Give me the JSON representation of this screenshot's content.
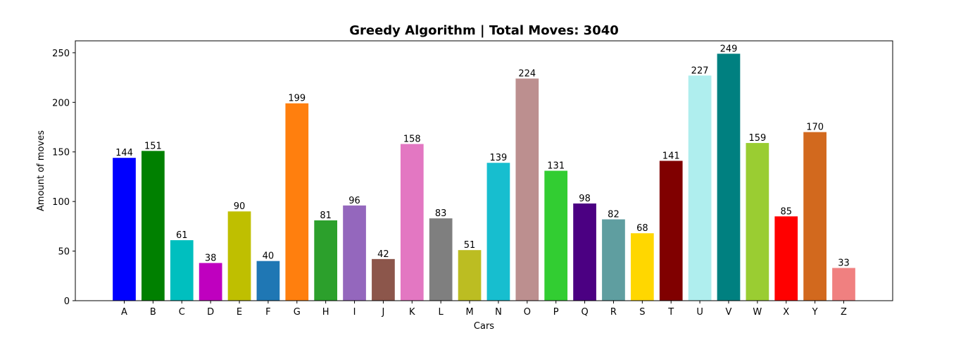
{
  "chart_data": {
    "type": "bar",
    "title": "Greedy Algorithm | Total Moves: 3040",
    "xlabel": "Cars",
    "ylabel": "Amount of moves",
    "ylim": [
      0,
      262
    ],
    "yticks": [
      0,
      50,
      100,
      150,
      200,
      250
    ],
    "categories": [
      "A",
      "B",
      "C",
      "D",
      "E",
      "F",
      "G",
      "H",
      "I",
      "J",
      "K",
      "L",
      "M",
      "N",
      "O",
      "P",
      "Q",
      "R",
      "S",
      "T",
      "U",
      "V",
      "W",
      "X",
      "Y",
      "Z"
    ],
    "values": [
      144,
      151,
      61,
      38,
      90,
      40,
      199,
      81,
      96,
      42,
      158,
      83,
      51,
      139,
      224,
      131,
      98,
      82,
      68,
      141,
      227,
      249,
      159,
      85,
      170,
      33
    ],
    "colors": [
      "#0000ff",
      "#008000",
      "#00bfbf",
      "#bf00bf",
      "#bfbf00",
      "#1f77b4",
      "#ff7f0e",
      "#2ca02c",
      "#9467bd",
      "#8c564b",
      "#e377c2",
      "#7f7f7f",
      "#bcbd22",
      "#17becf",
      "#bc8f8f",
      "#32cd32",
      "#4b0082",
      "#5f9ea0",
      "#ffd700",
      "#800000",
      "#afeeee",
      "#008080",
      "#9acd32",
      "#ff0000",
      "#d2691e",
      "#f08080"
    ],
    "grid": false,
    "legend": "none"
  }
}
